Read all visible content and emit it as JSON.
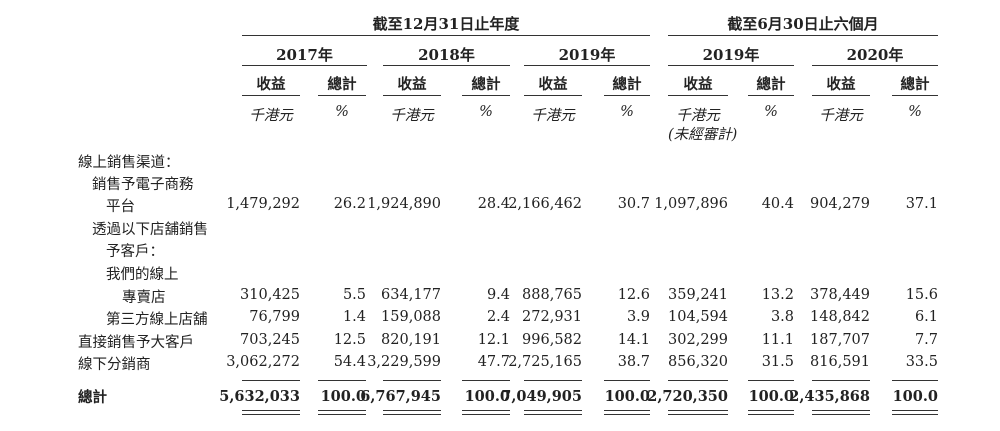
{
  "header": {
    "group_year_end": "截至12月31日止年度",
    "group_six_month": "截至6月30日止六個月",
    "years": [
      "2017年",
      "2018年",
      "2019年",
      "2019年",
      "2020年"
    ],
    "col_revenue": "收益",
    "col_total": "總計",
    "unit_hkd": "千港元",
    "unit_pct": "%",
    "unaudited": "(未經審計)"
  },
  "rows": {
    "online_channel": "線上銷售渠道：",
    "ecommerce_1": "銷售予電子商務",
    "ecommerce_2": "平台",
    "ecommerce_values": [
      "1,479,292",
      "26.2",
      "1,924,890",
      "28.4",
      "2,166,462",
      "30.7",
      "1,097,896",
      "40.4",
      "904,279",
      "37.1"
    ],
    "via_store_1": "透過以下店舖銷售",
    "via_store_2": "予客戶：",
    "own_store_1": "我們的線上",
    "own_store_2": "專賣店",
    "own_store_values": [
      "310,425",
      "5.5",
      "634,177",
      "9.4",
      "888,765",
      "12.6",
      "359,241",
      "13.2",
      "378,449",
      "15.6"
    ],
    "third_party": "第三方線上店舖",
    "third_party_values": [
      "76,799",
      "1.4",
      "159,088",
      "2.4",
      "272,931",
      "3.9",
      "104,594",
      "3.8",
      "148,842",
      "6.1"
    ],
    "direct": "直接銷售予大客戶",
    "direct_values": [
      "703,245",
      "12.5",
      "820,191",
      "12.1",
      "996,582",
      "14.1",
      "302,299",
      "11.1",
      "187,707",
      "7.7"
    ],
    "offline": "線下分銷商",
    "offline_values": [
      "3,062,272",
      "54.4",
      "3,229,599",
      "47.7",
      "2,725,165",
      "38.7",
      "856,320",
      "31.5",
      "816,591",
      "33.5"
    ],
    "total": "總計",
    "total_values": [
      "5,632,033",
      "100.0",
      "6,767,945",
      "100.0",
      "7,049,905",
      "100.0",
      "2,720,350",
      "100.0",
      "2,435,868",
      "100.0"
    ]
  }
}
